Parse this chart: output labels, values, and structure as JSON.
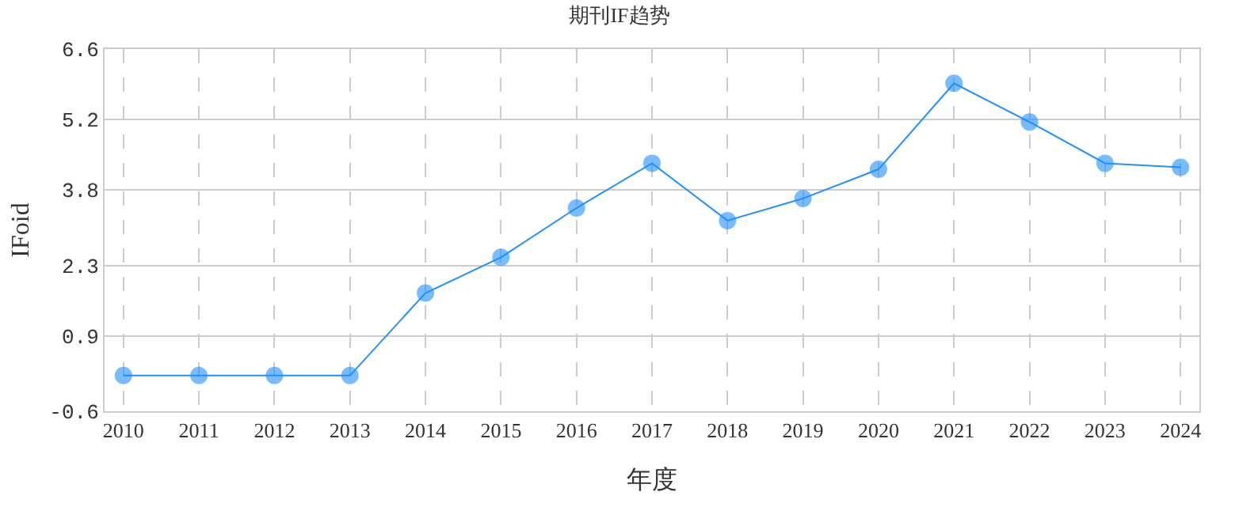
{
  "chart_data": {
    "type": "line",
    "title": "期刊IF趋势",
    "xlabel": "年度",
    "ylabel": "IFoid",
    "categories": [
      "2010",
      "2011",
      "2012",
      "2013",
      "2014",
      "2015",
      "2016",
      "2017",
      "2018",
      "2019",
      "2020",
      "2021",
      "2022",
      "2023",
      "2024"
    ],
    "series": [
      {
        "color": "#1e90ff",
        "values": [
          0.11,
          0.11,
          0.11,
          0.11,
          1.75,
          2.46,
          3.44,
          4.33,
          3.19,
          3.63,
          4.21,
          5.92,
          5.15,
          4.33,
          4.25
        ]
      }
    ],
    "ylim": [
      -0.6,
      6.6
    ],
    "yticks": [
      -0.6,
      0.9,
      2.3,
      3.8,
      5.2,
      6.6
    ],
    "grid": true,
    "marker": "circle",
    "line_style": "solid"
  }
}
